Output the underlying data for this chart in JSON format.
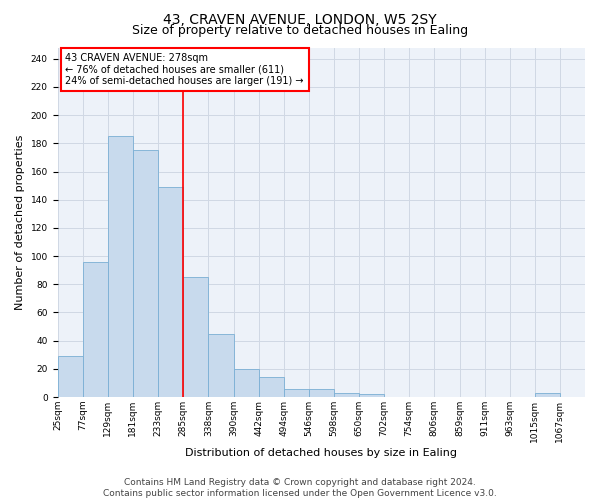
{
  "title": "43, CRAVEN AVENUE, LONDON, W5 2SY",
  "subtitle": "Size of property relative to detached houses in Ealing",
  "xlabel": "Distribution of detached houses by size in Ealing",
  "ylabel": "Number of detached properties",
  "bar_color": "#c8daed",
  "bar_edge_color": "#7aafd4",
  "grid_color": "#d0d8e4",
  "background_color": "#edf2f9",
  "vline_color": "red",
  "annotation_text": "43 CRAVEN AVENUE: 278sqm\n← 76% of detached houses are smaller (611)\n24% of semi-detached houses are larger (191) →",
  "annotation_box_color": "red",
  "categories": [
    "25sqm",
    "77sqm",
    "129sqm",
    "181sqm",
    "233sqm",
    "285sqm",
    "338sqm",
    "390sqm",
    "442sqm",
    "494sqm",
    "546sqm",
    "598sqm",
    "650sqm",
    "702sqm",
    "754sqm",
    "806sqm",
    "859sqm",
    "911sqm",
    "963sqm",
    "1015sqm",
    "1067sqm"
  ],
  "bin_edges": [
    25,
    77,
    129,
    181,
    233,
    285,
    338,
    390,
    442,
    494,
    546,
    598,
    650,
    702,
    754,
    806,
    859,
    911,
    963,
    1015,
    1067,
    1119
  ],
  "values": [
    29,
    96,
    185,
    175,
    149,
    85,
    45,
    20,
    14,
    6,
    6,
    3,
    2,
    0,
    0,
    0,
    0,
    0,
    0,
    3,
    0
  ],
  "vline_x_bin": 5,
  "ylim": [
    0,
    248
  ],
  "yticks": [
    0,
    20,
    40,
    60,
    80,
    100,
    120,
    140,
    160,
    180,
    200,
    220,
    240
  ],
  "footer": "Contains HM Land Registry data © Crown copyright and database right 2024.\nContains public sector information licensed under the Open Government Licence v3.0.",
  "title_fontsize": 10,
  "subtitle_fontsize": 9,
  "axis_label_fontsize": 8,
  "tick_fontsize": 6.5,
  "annotation_fontsize": 7,
  "footer_fontsize": 6.5
}
